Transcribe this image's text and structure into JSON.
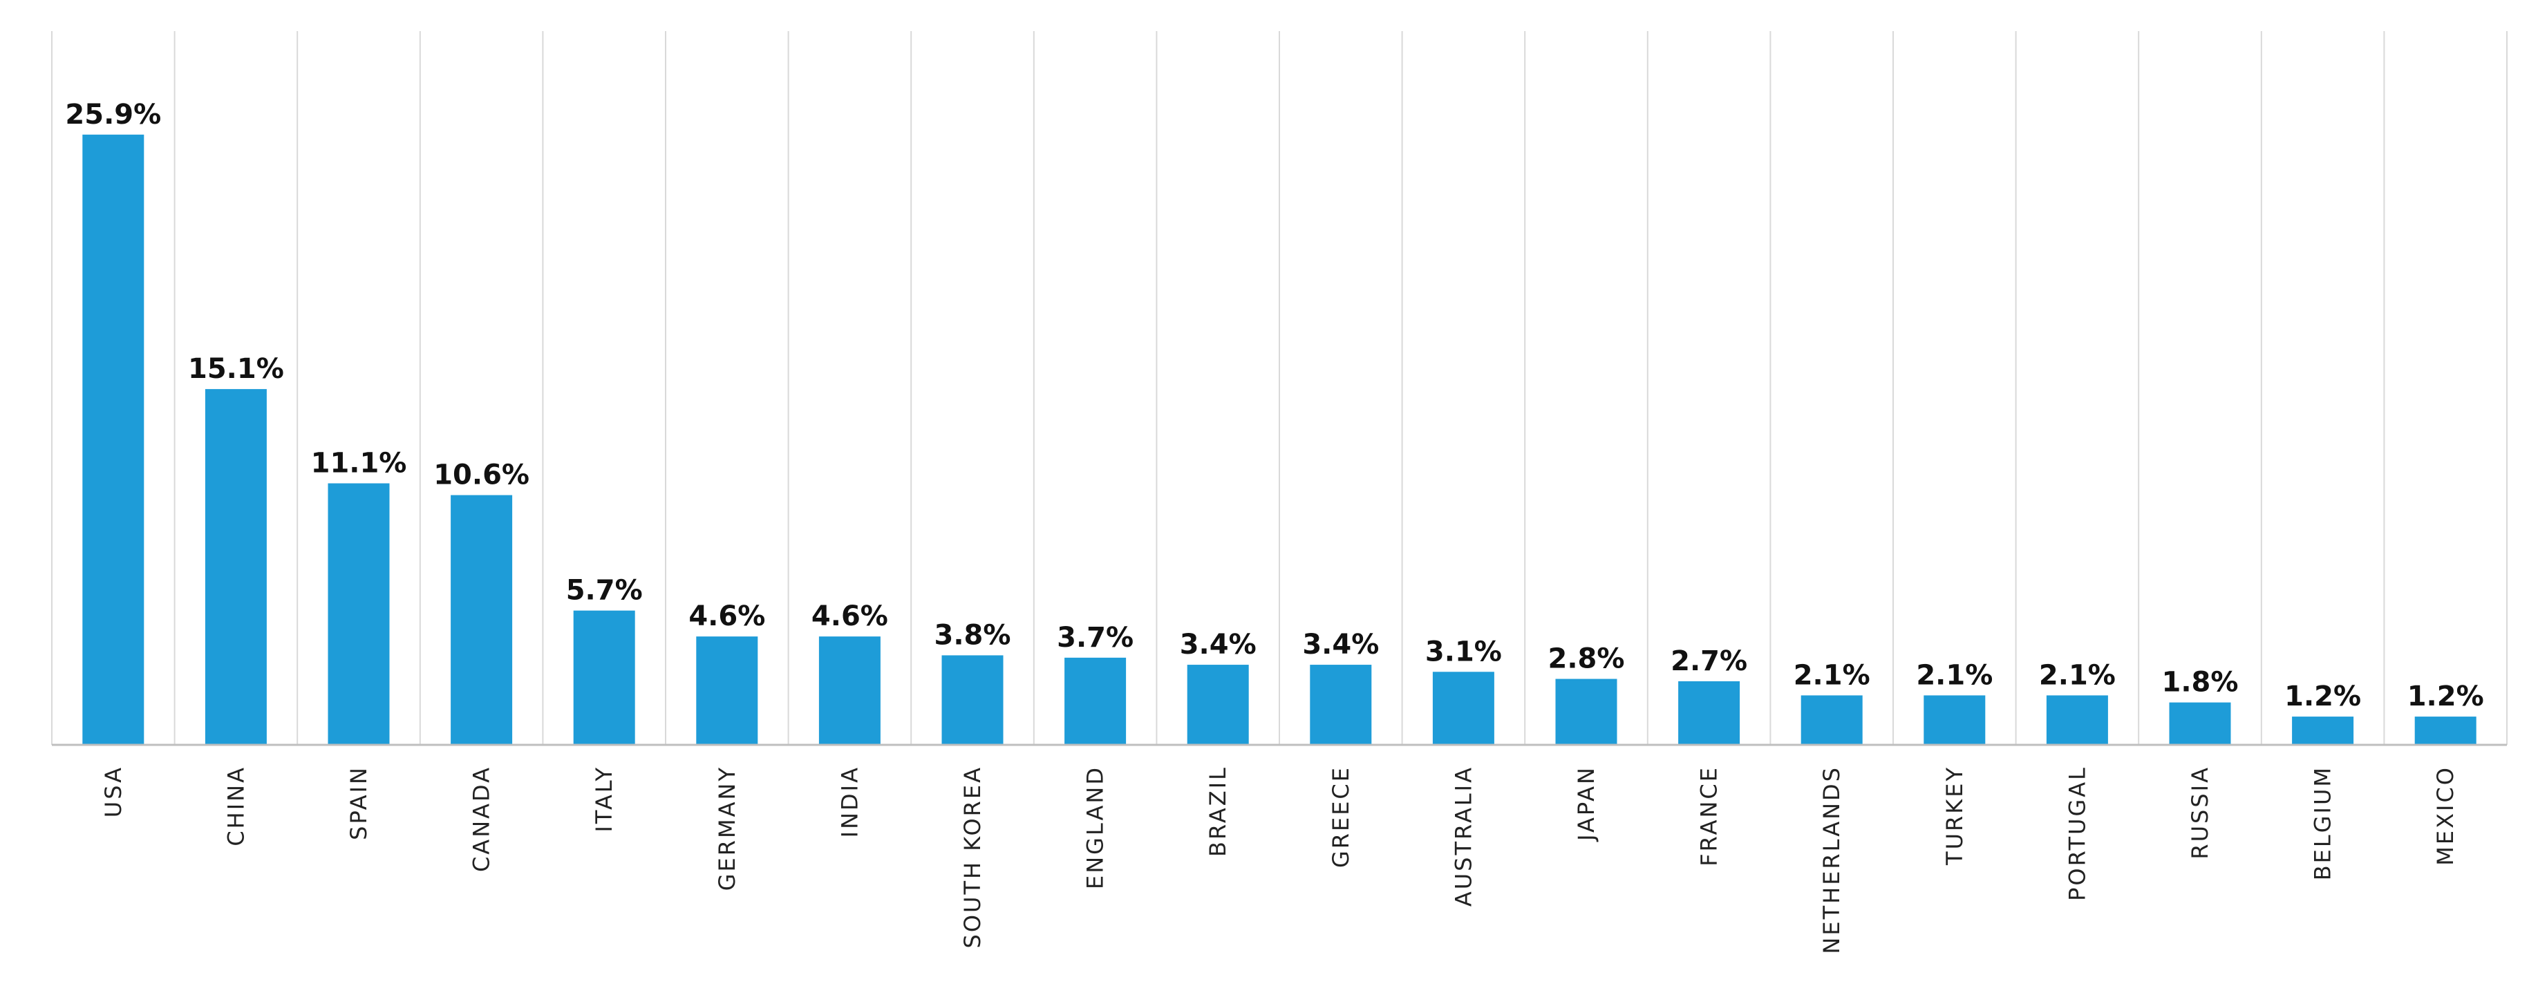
{
  "chart_data": {
    "type": "bar",
    "title": "",
    "xlabel": "",
    "ylabel": "",
    "ylim": [
      0,
      30
    ],
    "grid": "vertical",
    "bar_color": "#1E9CD8",
    "grid_color": "#D9D9D9",
    "axis_color": "#BFBFBF",
    "categories": [
      "USA",
      "CHINA",
      "SPAIN",
      "CANADA",
      "ITALY",
      "GERMANY",
      "INDIA",
      "SOUTH KOREA",
      "ENGLAND",
      "BRAZIL",
      "GREECE",
      "AUSTRALIA",
      "JAPAN",
      "FRANCE",
      "NETHERLANDS",
      "TURKEY",
      "PORTUGAL",
      "RUSSIA",
      "BELGIUM",
      "MEXICO"
    ],
    "values": [
      25.9,
      15.1,
      11.1,
      10.6,
      5.7,
      4.6,
      4.6,
      3.8,
      3.7,
      3.4,
      3.4,
      3.1,
      2.8,
      2.7,
      2.1,
      2.1,
      2.1,
      1.8,
      1.2,
      1.2
    ],
    "value_labels": [
      "25.9%",
      "15.1%",
      "11.1%",
      "10.6%",
      "5.7%",
      "4.6%",
      "4.6%",
      "3.8%",
      "3.7%",
      "3.4%",
      "3.4%",
      "3.1%",
      "2.8%",
      "2.7%",
      "2.1%",
      "2.1%",
      "2.1%",
      "1.8%",
      "1.2%",
      "1.2%"
    ]
  }
}
